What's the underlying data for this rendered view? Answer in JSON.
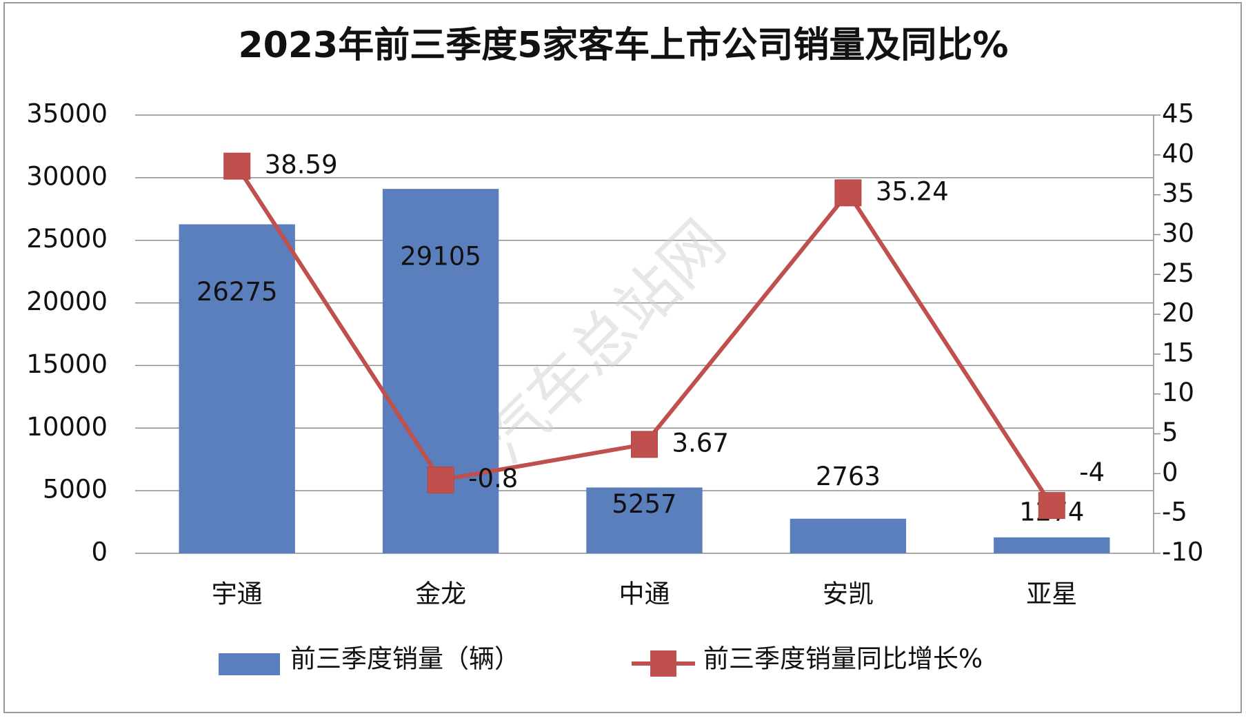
{
  "chart_data": {
    "type": "bar_line",
    "title": "2023年前三季度5家客车上市公司销量及同比%",
    "watermark": "汽车总站网",
    "categories": [
      "宇通",
      "金龙",
      "中通",
      "安凯",
      "亚星"
    ],
    "series": [
      {
        "name": "前三季度销量（辆）",
        "type": "bar",
        "color": "#5b7fbd",
        "values": [
          26275,
          29105,
          5257,
          2763,
          1274
        ]
      },
      {
        "name": "前三季度销量同比增长%",
        "type": "line",
        "axis": "y2",
        "color": "#c0504d",
        "values": [
          38.59,
          -0.8,
          3.67,
          35.24,
          -4
        ]
      }
    ],
    "ylim": [
      0,
      35000
    ],
    "yticks": [
      0,
      5000,
      10000,
      15000,
      20000,
      25000,
      30000,
      35000
    ],
    "y2lim": [
      -10,
      45
    ],
    "y2ticks": [
      -10,
      -5,
      0,
      5,
      10,
      15,
      20,
      25,
      30,
      35,
      40,
      45
    ],
    "grid": true,
    "legend": "bottom"
  }
}
